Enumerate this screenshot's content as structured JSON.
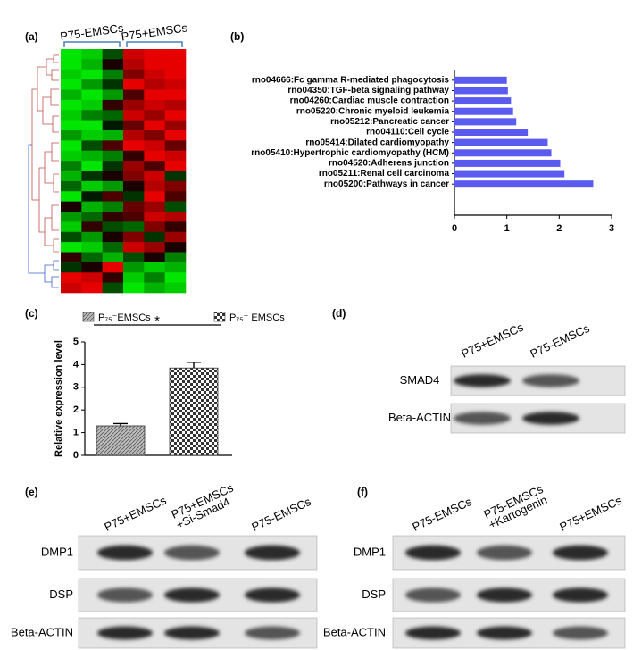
{
  "chart_data": [
    {
      "type": "heatmap",
      "label": "(a)",
      "groups": [
        "P75-EMSCs",
        "P75+EMSCs"
      ],
      "matrix": [
        [
          -0.9,
          -0.8,
          -0.3,
          0.8,
          0.9,
          0.9
        ],
        [
          -0.9,
          -0.7,
          0.1,
          0.7,
          0.9,
          0.9
        ],
        [
          -0.8,
          -0.9,
          -0.5,
          0.5,
          0.8,
          0.9
        ],
        [
          -0.9,
          -0.6,
          -0.2,
          0.9,
          0.7,
          0.8
        ],
        [
          -0.7,
          -0.9,
          -0.6,
          0.3,
          0.9,
          0.9
        ],
        [
          -0.9,
          -0.8,
          0.2,
          0.6,
          0.8,
          0.7
        ],
        [
          -0.8,
          -0.5,
          -0.4,
          0.8,
          0.6,
          0.9
        ],
        [
          -0.9,
          -0.9,
          -0.1,
          0.4,
          0.9,
          0.6
        ],
        [
          -0.6,
          -0.8,
          -0.7,
          0.7,
          0.5,
          0.9
        ],
        [
          -0.9,
          -0.3,
          0.3,
          0.9,
          0.8,
          0.4
        ],
        [
          -0.8,
          -0.7,
          -0.5,
          0.2,
          0.9,
          0.8
        ],
        [
          -0.5,
          -0.9,
          -0.2,
          0.6,
          0.3,
          0.9
        ],
        [
          -0.7,
          -0.2,
          0.1,
          0.5,
          0.8,
          -0.2
        ],
        [
          -0.4,
          -0.8,
          -0.6,
          0.1,
          0.7,
          0.5
        ],
        [
          -0.9,
          -0.1,
          0.3,
          -0.2,
          0.9,
          0.3
        ],
        [
          0.1,
          -0.7,
          -0.5,
          0.4,
          0.6,
          -0.3
        ],
        [
          -0.6,
          -0.4,
          0.2,
          0.3,
          0.8,
          0.7
        ],
        [
          -0.8,
          0.2,
          -0.3,
          -0.4,
          0.5,
          0.2
        ],
        [
          -0.3,
          -0.6,
          0.1,
          0.5,
          -0.2,
          0.6
        ],
        [
          -0.9,
          -0.8,
          -0.4,
          0.8,
          0.6,
          0.1
        ],
        [
          0.2,
          -0.4,
          -0.7,
          -0.3,
          0.1,
          -0.5
        ],
        [
          -0.2,
          0.1,
          0.9,
          -0.6,
          -0.8,
          -0.7
        ],
        [
          0.9,
          0.8,
          0.2,
          -0.8,
          -0.5,
          -0.9
        ],
        [
          0.8,
          0.9,
          -0.3,
          -0.9,
          -0.7,
          -0.8
        ]
      ]
    },
    {
      "type": "bar",
      "orientation": "horizontal",
      "label": "(b)",
      "color": "#5b5bf0",
      "categories": [
        "rno04666:Fc gamma R-mediated phagocytosis",
        "rno04350:TGF-beta signaling pathway",
        "rno04260:Cardiac muscle contraction",
        "rno05220:Chronic myeloid leukemia",
        "rno05212:Pancreatic cancer",
        "rno04110:Cell cycle",
        "rno05414:Dilated cardiomyopathy",
        "rno05410:Hypertrophic cardiomyopathy (HCM)",
        "rno04520:Adherens junction",
        "rno05211:Renal cell carcinoma",
        "rno05200:Pathways in cancer"
      ],
      "values": [
        1.0,
        1.02,
        1.08,
        1.12,
        1.18,
        1.4,
        1.78,
        1.85,
        2.02,
        2.1,
        2.65
      ],
      "xlim": [
        0,
        3
      ],
      "xticks": [
        0,
        1,
        2,
        3
      ]
    },
    {
      "type": "bar",
      "orientation": "vertical",
      "label": "(c)",
      "ylabel": "Relative expression level",
      "annotation": "*",
      "series": [
        {
          "name": "P₇₅⁻EMSCs",
          "values": [
            1.3
          ],
          "errors": [
            0.1
          ]
        },
        {
          "name": "P₇₅⁺ EMSCs",
          "values": [
            3.85
          ],
          "errors": [
            0.25
          ]
        }
      ],
      "ylim": [
        0,
        5
      ],
      "yticks": [
        0,
        1,
        2,
        3,
        4,
        5
      ]
    }
  ],
  "blots": [
    {
      "label": "(d)",
      "columns": [
        [
          "P75+EMSCs"
        ],
        [
          "P75-EMSCs"
        ]
      ],
      "rows": [
        "SMAD4",
        "Beta-ACTIN"
      ]
    },
    {
      "label": "(e)",
      "columns": [
        [
          "P75+EMSCs"
        ],
        [
          "P75+EMSCs",
          "+Si-Smad4"
        ],
        [
          "P75-EMSCs"
        ]
      ],
      "rows": [
        "DMP1",
        "DSP",
        "Beta-ACTIN"
      ]
    },
    {
      "label": "(f)",
      "columns": [
        [
          "P75-EMSCs"
        ],
        [
          "P75-EMSCs",
          "+Kartogenin"
        ],
        [
          "P75+EMSCs"
        ]
      ],
      "rows": [
        "DMP1",
        "DSP",
        "Beta-ACTIN"
      ]
    }
  ]
}
